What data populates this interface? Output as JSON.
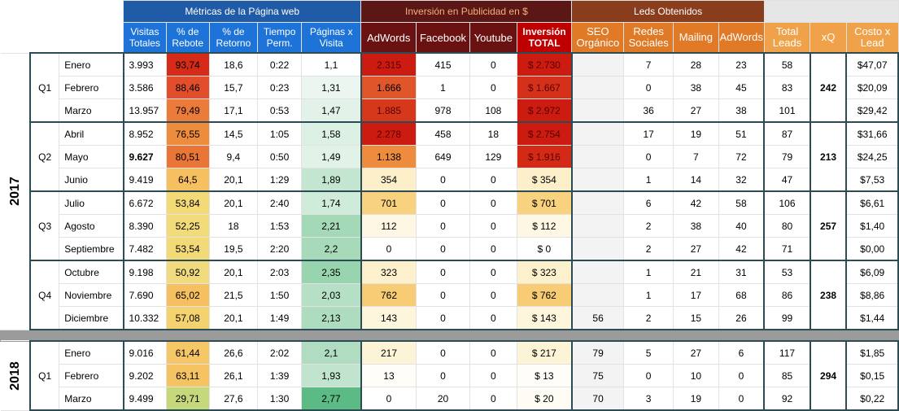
{
  "header": {
    "group_web": "Métricas de la Página web",
    "group_investment": "Inversión en Publicidad en $",
    "group_leads": "Leds Obtenidos",
    "columns": {
      "visitas": "Visitas Totales",
      "rebote": "% de Rebote",
      "retorno": "% de Retorno",
      "tiempo": "Tiempo Perm.",
      "paginas": "Páginas x Visita",
      "adwords": "AdWords",
      "facebook": "Facebook",
      "youtube": "Youtube",
      "inversion": "Inversión TOTAL",
      "seo": "SEO Orgánico",
      "redes": "Redes Sociales",
      "mailing": "Mailing",
      "adwords_leads": "AdWords",
      "total_leads": "Total Leads",
      "xq": "xQ",
      "costo": "Costo x Lead"
    }
  },
  "years": [
    {
      "year": "2017",
      "quarters": [
        {
          "label": "Q1",
          "xq": "242",
          "rows": [
            {
              "mes": "Enero",
              "visitas": "3.993",
              "rebote": "93,74",
              "retorno": "18,6",
              "tiempo": "0:22",
              "paginas": "1,1",
              "adwords": "2.315",
              "facebook": "415",
              "youtube": "0",
              "inversion": "$ 2.730",
              "seo": "",
              "redes": "7",
              "mailing": "28",
              "adwords_leads": "23",
              "total": "58",
              "costo": "$47,07",
              "c_rebote": "#d72b1a",
              "c_paginas": "#ffffff",
              "c_adwords": "#cc1b10",
              "c_inv": "#cc1b10"
            },
            {
              "mes": "Febrero",
              "visitas": "3.586",
              "rebote": "88,46",
              "retorno": "15,7",
              "tiempo": "0:23",
              "paginas": "1,31",
              "adwords": "1.666",
              "facebook": "1",
              "youtube": "0",
              "inversion": "$ 1.667",
              "seo": "",
              "redes": "0",
              "mailing": "38",
              "adwords_leads": "45",
              "total": "83",
              "costo": "$20,09",
              "c_rebote": "#e24e2c",
              "c_paginas": "#eaf6ef",
              "c_adwords": "#e0562a",
              "c_inv": "#d5311a"
            },
            {
              "mes": "Marzo",
              "visitas": "13.957",
              "rebote": "79,49",
              "retorno": "17,1",
              "tiempo": "0:53",
              "paginas": "1,47",
              "adwords": "1.885",
              "facebook": "978",
              "youtube": "108",
              "inversion": "$ 2.972",
              "seo": "",
              "redes": "36",
              "mailing": "27",
              "adwords_leads": "38",
              "total": "101",
              "costo": "$29,42",
              "c_rebote": "#ea7b3a",
              "c_paginas": "#e2f2e8",
              "c_adwords": "#d6381c",
              "c_inv": "#cc1b10"
            }
          ]
        },
        {
          "label": "Q2",
          "xq": "213",
          "rows": [
            {
              "mes": "Abril",
              "visitas": "8.952",
              "rebote": "76,55",
              "retorno": "14,5",
              "tiempo": "1:05",
              "paginas": "1,58",
              "adwords": "2.278",
              "facebook": "458",
              "youtube": "18",
              "inversion": "$ 2.754",
              "seo": "",
              "redes": "17",
              "mailing": "19",
              "adwords_leads": "51",
              "total": "87",
              "costo": "$31,66",
              "c_rebote": "#ee8c3e",
              "c_paginas": "#dcf0e3",
              "c_adwords": "#cc1b10",
              "c_inv": "#cc1b10"
            },
            {
              "mes": "Mayo",
              "visitas": "9.627",
              "rebote": "80,51",
              "retorno": "9,4",
              "tiempo": "0:50",
              "paginas": "1,49",
              "adwords": "1.138",
              "facebook": "649",
              "youtube": "129",
              "inversion": "$ 1.916",
              "seo": "",
              "redes": "0",
              "mailing": "7",
              "adwords_leads": "72",
              "total": "79",
              "costo": "$24,25",
              "c_rebote": "#e97636",
              "c_paginas": "#e1f2e7",
              "c_adwords": "#ee8c3e",
              "c_inv": "#d22a17"
            },
            {
              "mes": "Junio",
              "visitas": "9.419",
              "rebote": "64,5",
              "retorno": "20,1",
              "tiempo": "1:29",
              "paginas": "1,89",
              "adwords": "354",
              "facebook": "0",
              "youtube": "0",
              "inversion": "$ 354",
              "seo": "",
              "redes": "1",
              "mailing": "14",
              "adwords_leads": "32",
              "total": "47",
              "costo": "$7,53",
              "c_rebote": "#f6c061",
              "c_paginas": "#c4e6d1",
              "c_adwords": "#fcefc9",
              "c_inv": "#fcefc9"
            }
          ]
        },
        {
          "label": "Q3",
          "xq": "257",
          "rows": [
            {
              "mes": "Julio",
              "visitas": "6.672",
              "rebote": "53,84",
              "retorno": "20,1",
              "tiempo": "2:40",
              "paginas": "1,74",
              "adwords": "701",
              "facebook": "0",
              "youtube": "0",
              "inversion": "$ 701",
              "seo": "",
              "redes": "6",
              "mailing": "42",
              "adwords_leads": "58",
              "total": "106",
              "costo": "$6,61",
              "c_rebote": "#f4d977",
              "c_paginas": "#cfebda",
              "c_adwords": "#f8d27e",
              "c_inv": "#f8d27e"
            },
            {
              "mes": "Agosto",
              "visitas": "8.390",
              "rebote": "52,25",
              "retorno": "18",
              "tiempo": "1:53",
              "paginas": "2,21",
              "adwords": "112",
              "facebook": "0",
              "youtube": "0",
              "inversion": "$ 112",
              "seo": "",
              "redes": "2",
              "mailing": "38",
              "adwords_leads": "40",
              "total": "80",
              "costo": "$1,40",
              "c_rebote": "#f2db7b",
              "c_paginas": "#a4d9b8",
              "c_adwords": "#fef7e3",
              "c_inv": "#fef7e3"
            },
            {
              "mes": "Septiembre",
              "visitas": "7.482",
              "rebote": "53,54",
              "retorno": "19,5",
              "tiempo": "2:20",
              "paginas": "2,2",
              "adwords": "0",
              "facebook": "0",
              "youtube": "0",
              "inversion": "$ 0",
              "seo": "",
              "redes": "2",
              "mailing": "27",
              "adwords_leads": "42",
              "total": "71",
              "costo": "$0,00",
              "c_rebote": "#f3da78",
              "c_paginas": "#a6dab9",
              "c_adwords": "#ffffff",
              "c_inv": "#ffffff"
            }
          ]
        },
        {
          "label": "Q4",
          "xq": "238",
          "rows": [
            {
              "mes": "Octubre",
              "visitas": "9.198",
              "rebote": "50,92",
              "retorno": "20,1",
              "tiempo": "2:03",
              "paginas": "2,35",
              "adwords": "323",
              "facebook": "0",
              "youtube": "0",
              "inversion": "$ 323",
              "seo": "",
              "redes": "1",
              "mailing": "21",
              "adwords_leads": "31",
              "total": "53",
              "costo": "$6,09",
              "c_rebote": "#f0dc7e",
              "c_paginas": "#98d4ae",
              "c_adwords": "#fcf0cd",
              "c_inv": "#fcf0cd"
            },
            {
              "mes": "Noviembre",
              "visitas": "7.690",
              "rebote": "65,02",
              "retorno": "21,5",
              "tiempo": "1:50",
              "paginas": "2,03",
              "adwords": "762",
              "facebook": "0",
              "youtube": "0",
              "inversion": "$ 762",
              "seo": "",
              "redes": "1",
              "mailing": "17",
              "adwords_leads": "68",
              "total": "86",
              "costo": "$8,86",
              "c_rebote": "#f6bf60",
              "c_paginas": "#b6e0c6",
              "c_adwords": "#f7cc74",
              "c_inv": "#f7cc74"
            },
            {
              "mes": "Diciembre",
              "visitas": "10.332",
              "rebote": "57,08",
              "retorno": "20,1",
              "tiempo": "1:49",
              "paginas": "2,13",
              "adwords": "143",
              "facebook": "0",
              "youtube": "0",
              "inversion": "$ 143",
              "seo": "56",
              "redes": "2",
              "mailing": "15",
              "adwords_leads": "26",
              "total": "99",
              "costo": "$1,44",
              "c_rebote": "#f5d270",
              "c_paginas": "#aedcbf",
              "c_adwords": "#fef5dd",
              "c_inv": "#fef5dd"
            }
          ]
        }
      ]
    },
    {
      "year": "2018",
      "quarters": [
        {
          "label": "Q1",
          "xq": "294",
          "rows": [
            {
              "mes": "Enero",
              "visitas": "9.016",
              "rebote": "61,44",
              "retorno": "26,6",
              "tiempo": "2:02",
              "paginas": "2,1",
              "adwords": "217",
              "facebook": "0",
              "youtube": "0",
              "inversion": "$ 217",
              "seo": "79",
              "redes": "5",
              "mailing": "27",
              "adwords_leads": "6",
              "total": "117",
              "costo": "$1,85",
              "c_rebote": "#f6c766",
              "c_paginas": "#b0ddc1",
              "c_adwords": "#fdf3d6",
              "c_inv": "#fdf3d6"
            },
            {
              "mes": "Febrero",
              "visitas": "9.202",
              "rebote": "63,11",
              "retorno": "26,1",
              "tiempo": "1:39",
              "paginas": "1,93",
              "adwords": "13",
              "facebook": "0",
              "youtube": "0",
              "inversion": "$ 13",
              "seo": "75",
              "redes": "0",
              "mailing": "10",
              "adwords_leads": "0",
              "total": "85",
              "costo": "$0,15",
              "c_rebote": "#f6c363",
              "c_paginas": "#c0e4cd",
              "c_adwords": "#fffdf8",
              "c_inv": "#fffdf8"
            },
            {
              "mes": "Marzo",
              "visitas": "9.499",
              "rebote": "29,71",
              "retorno": "27,6",
              "tiempo": "1:30",
              "paginas": "2,77",
              "adwords": "0",
              "facebook": "20",
              "youtube": "0",
              "inversion": "$ 20",
              "seo": "70",
              "redes": "3",
              "mailing": "19",
              "adwords_leads": "0",
              "total": "92",
              "costo": "$0,22",
              "c_rebote": "#c5d97c",
              "c_paginas": "#5cbb84",
              "c_adwords": "#ffffff",
              "c_inv": "#fffcf5"
            }
          ]
        }
      ]
    }
  ]
}
